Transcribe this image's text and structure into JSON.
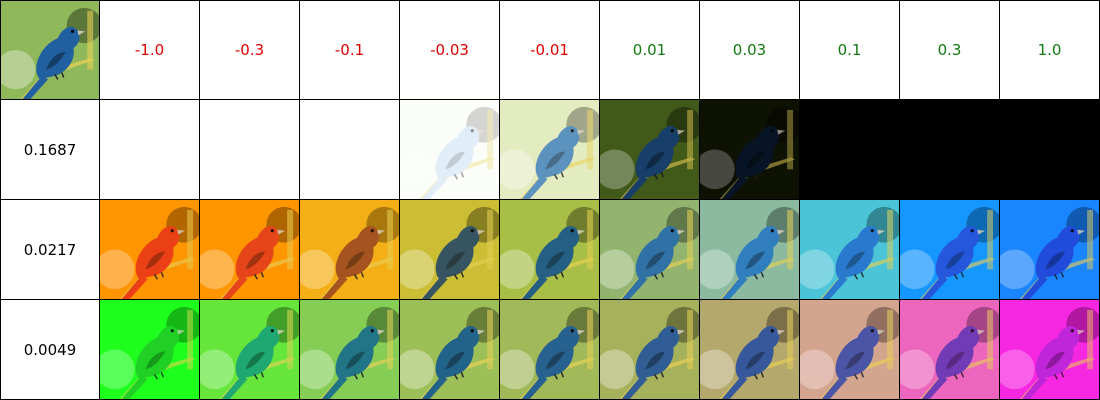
{
  "header_values": [
    {
      "label": "-1.0",
      "color": "#dd0000"
    },
    {
      "label": "-0.3",
      "color": "#dd0000"
    },
    {
      "label": "-0.1",
      "color": "#dd0000"
    },
    {
      "label": "-0.03",
      "color": "#dd0000"
    },
    {
      "label": "-0.01",
      "color": "#dd0000"
    },
    {
      "label": "0.01",
      "color": "#117a11"
    },
    {
      "label": "0.03",
      "color": "#117a11"
    },
    {
      "label": "0.1",
      "color": "#117a11"
    },
    {
      "label": "0.3",
      "color": "#117a11"
    },
    {
      "label": "1.0",
      "color": "#117a11"
    }
  ],
  "rows": [
    {
      "label": "0.1687",
      "tints": [
        {
          "bg": "#ffffff",
          "overlay": "#ffffff",
          "opacity": 1.0,
          "bird": "none"
        },
        {
          "bg": "#ffffff",
          "overlay": "#ffffff",
          "opacity": 1.0,
          "bird": "none"
        },
        {
          "bg": "#ffffff",
          "overlay": "#ffffff",
          "opacity": 1.0,
          "bird": "none"
        },
        {
          "bg": "#f6fbf2",
          "overlay": "#ffffff",
          "opacity": 0.55,
          "bird": "#bcd8ee"
        },
        {
          "bg": "#dfe9b6",
          "overlay": "#ffffff",
          "opacity": 0.15,
          "bird": "#3f7fb3"
        },
        {
          "bg": "#4d6a1e",
          "overlay": "#000000",
          "opacity": 0.15,
          "bird": "#1d4b7c"
        },
        {
          "bg": "#151a05",
          "overlay": "#000000",
          "opacity": 0.3,
          "bird": "#0b1e36"
        },
        {
          "bg": "#000000",
          "overlay": "#000000",
          "opacity": 1.0,
          "bird": "none"
        },
        {
          "bg": "#000000",
          "overlay": "#000000",
          "opacity": 1.0,
          "bird": "none"
        },
        {
          "bg": "#000000",
          "overlay": "#000000",
          "opacity": 1.0,
          "bird": "none"
        }
      ]
    },
    {
      "label": "0.0217",
      "tints": [
        {
          "bg": "#ff9a00",
          "overlay": "#ff7a00",
          "opacity": 0.15,
          "bird": "#e8361a"
        },
        {
          "bg": "#ff9a00",
          "overlay": "#ff7a00",
          "opacity": 0.12,
          "bird": "#e23e1c"
        },
        {
          "bg": "#f3b21a",
          "overlay": "#ff9a00",
          "opacity": 0.12,
          "bird": "#9a4a24"
        },
        {
          "bg": "#cbc03a",
          "overlay": "#c8a000",
          "opacity": 0.08,
          "bird": "#2a4e6a"
        },
        {
          "bg": "#a9bf4a",
          "overlay": "#a0b000",
          "opacity": 0.05,
          "bird": "#1f5c8c"
        },
        {
          "bg": "#95b56e",
          "overlay": "#7ab08a",
          "opacity": 0.05,
          "bird": "#2e6fa8"
        },
        {
          "bg": "#8fbba0",
          "overlay": "#64b0b0",
          "opacity": 0.08,
          "bird": "#2d7ac0"
        },
        {
          "bg": "#4fc4d6",
          "overlay": "#27c2d8",
          "opacity": 0.12,
          "bird": "#2a6fcf"
        },
        {
          "bg": "#1a9cff",
          "overlay": "#0080ff",
          "opacity": 0.15,
          "bird": "#2b51d6"
        },
        {
          "bg": "#1e8cff",
          "overlay": "#0060ff",
          "opacity": 0.15,
          "bird": "#2748d4"
        }
      ]
    },
    {
      "label": "0.0049",
      "tints": [
        {
          "bg": "#22ff22",
          "overlay": "#10ff10",
          "opacity": 0.2,
          "bird": "#25c52a"
        },
        {
          "bg": "#6ce23c",
          "overlay": "#30ff30",
          "opacity": 0.1,
          "bird": "#1f9f7a"
        },
        {
          "bg": "#88cc55",
          "overlay": "#60e060",
          "opacity": 0.06,
          "bird": "#1e6f8a"
        },
        {
          "bg": "#9ebf57",
          "overlay": "#90c060",
          "opacity": 0.04,
          "bird": "#1e5f8c"
        },
        {
          "bg": "#a3ba5a",
          "overlay": "#a0b060",
          "opacity": 0.04,
          "bird": "#235e91"
        },
        {
          "bg": "#a6b25c",
          "overlay": "#b0a060",
          "opacity": 0.04,
          "bird": "#2a5b96"
        },
        {
          "bg": "#b5aa6c",
          "overlay": "#c09070",
          "opacity": 0.06,
          "bird": "#2f579e"
        },
        {
          "bg": "#d3a78d",
          "overlay": "#e090a0",
          "opacity": 0.1,
          "bird": "#3a4ea8"
        },
        {
          "bg": "#e96dbe",
          "overlay": "#ff40c0",
          "opacity": 0.15,
          "bird": "#5a3ab4"
        },
        {
          "bg": "#f331e2",
          "overlay": "#ff00e0",
          "opacity": 0.2,
          "bird": "#b02fd8"
        }
      ]
    }
  ],
  "original": {
    "bg": "#8fb85a",
    "bird": "#2060a0"
  }
}
